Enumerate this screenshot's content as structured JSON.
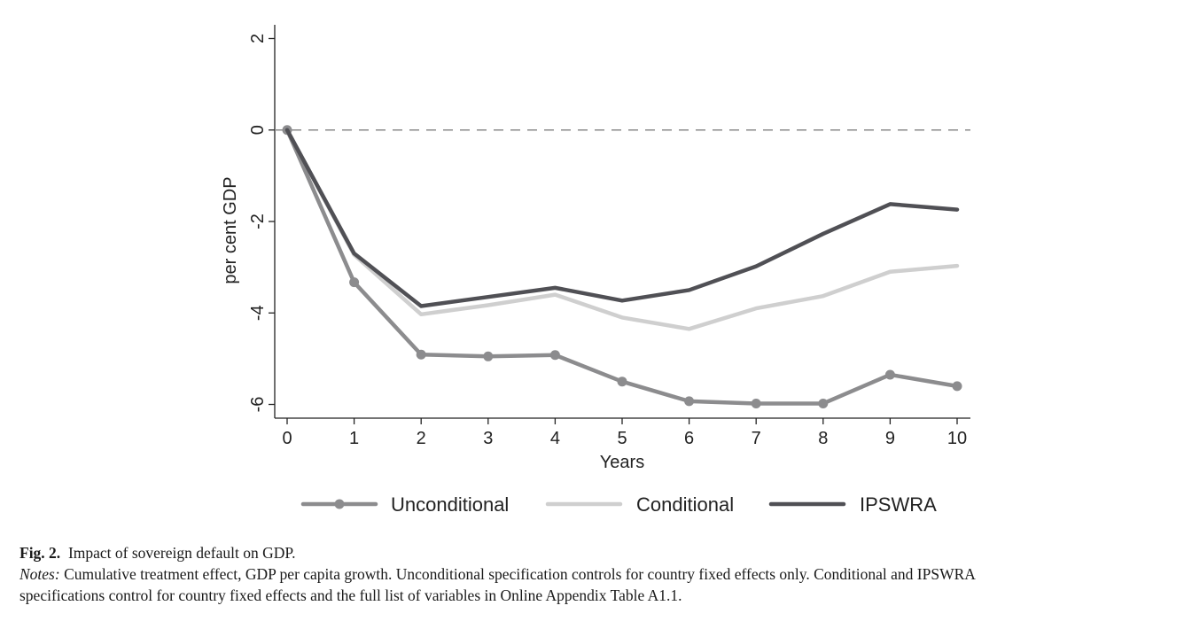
{
  "chart_data": {
    "type": "line",
    "x": [
      0,
      1,
      2,
      3,
      4,
      5,
      6,
      7,
      8,
      9,
      10
    ],
    "xlabel": "Years",
    "ylabel": "per cent GDP",
    "xlim": [
      -0.2,
      10.2
    ],
    "ylim": [
      -6.3,
      2.3
    ],
    "xticks": [
      "0",
      "1",
      "2",
      "3",
      "4",
      "5",
      "6",
      "7",
      "8",
      "9",
      "10"
    ],
    "yticks": [
      "2",
      "0",
      "-2",
      "-4",
      "-6"
    ],
    "ytick_values": [
      2,
      0,
      -2,
      -4,
      -6
    ],
    "reference_line": 0,
    "grid": false,
    "legend_position": "bottom",
    "series": [
      {
        "name": "Unconditional",
        "color": "#8c8c8e",
        "markers": true,
        "values": [
          0,
          -3.33,
          -4.91,
          -4.95,
          -4.92,
          -5.5,
          -5.93,
          -5.98,
          -5.98,
          -5.35,
          -5.6
        ]
      },
      {
        "name": "Conditional",
        "color": "#cfcfcf",
        "markers": false,
        "values": [
          0,
          -2.73,
          -4.03,
          -3.83,
          -3.6,
          -4.1,
          -4.35,
          -3.9,
          -3.63,
          -3.1,
          -2.97
        ]
      },
      {
        "name": "IPSWRA",
        "color": "#505055",
        "markers": false,
        "values": [
          0,
          -2.7,
          -3.85,
          -3.65,
          -3.45,
          -3.73,
          -3.5,
          -2.98,
          -2.27,
          -1.62,
          -1.74
        ]
      }
    ]
  },
  "caption": {
    "fig_label": "Fig. 2.",
    "title": "Impact of sovereign default on GDP.",
    "notes_label": "Notes:",
    "notes_line1": "Cumulative treatment effect, GDP per capita growth. Unconditional specification controls for country fixed effects only. Conditional and IPSWRA",
    "notes_line2": "specifications control for country fixed effects and the full list of variables in Online Appendix Table A1.1."
  }
}
